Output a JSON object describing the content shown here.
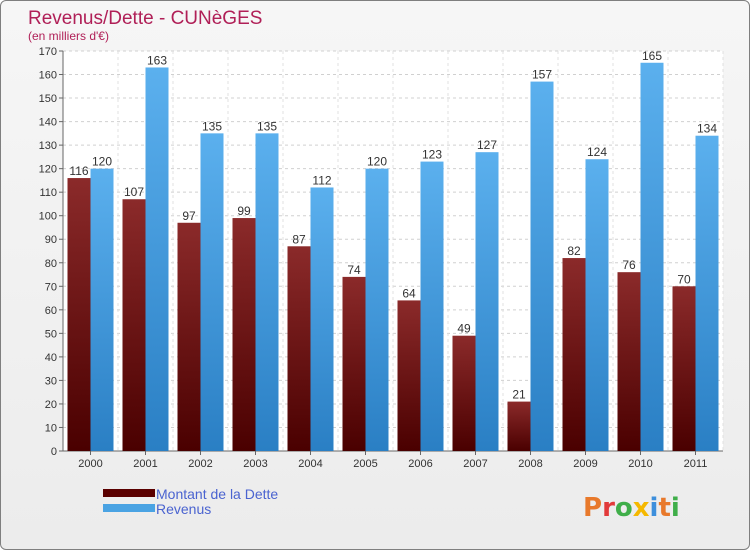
{
  "chart_data": {
    "type": "bar",
    "title": "Revenus/Dette - CUNèGES",
    "subtitle": "(en milliers d'€)",
    "categories": [
      "2000",
      "2001",
      "2002",
      "2003",
      "2004",
      "2005",
      "2006",
      "2007",
      "2008",
      "2009",
      "2010",
      "2011"
    ],
    "series": [
      {
        "name": "Montant de la Dette",
        "color": "#7a1a1a",
        "values": [
          116,
          107,
          97,
          99,
          87,
          74,
          64,
          49,
          21,
          82,
          76,
          70
        ]
      },
      {
        "name": "Revenus",
        "color": "#4aa3e3",
        "values": [
          120,
          163,
          135,
          135,
          112,
          120,
          123,
          127,
          157,
          124,
          165,
          134
        ]
      }
    ],
    "ylim": [
      0,
      170
    ],
    "ytick_step": 10,
    "grid": true,
    "legend": "bottom-left"
  },
  "branding": {
    "logo_text": "Proxiti",
    "logo_colors": [
      "#e8792b",
      "#e23a3a",
      "#3fae49",
      "#f5b800",
      "#3d8fdc",
      "#e8792b",
      "#3fae49"
    ]
  }
}
